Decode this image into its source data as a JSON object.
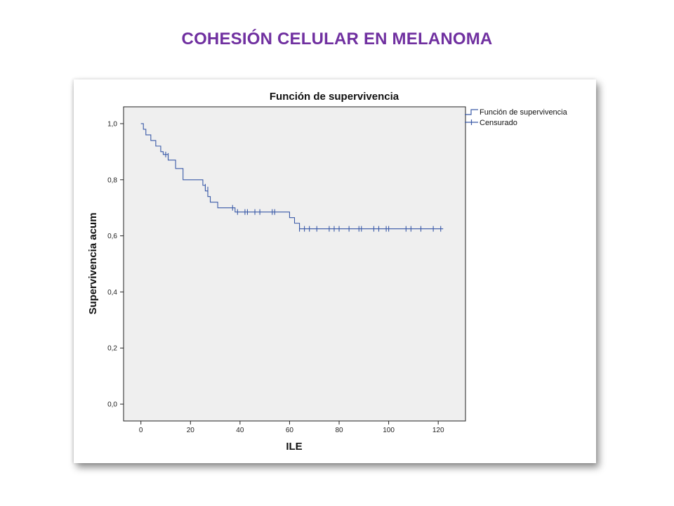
{
  "slide": {
    "title": "COHESIÓN CELULAR EN MELANOMA"
  },
  "colors": {
    "title": "#7030a0",
    "plot_background": "#efefef",
    "series": "#3a5aa8"
  },
  "chart_data": {
    "type": "line",
    "title": "Función de supervivencia",
    "xlabel": "ILE",
    "ylabel": "Supervivencia acum",
    "xlim": [
      -7,
      131
    ],
    "ylim": [
      -0.06,
      1.06
    ],
    "x_ticks": [
      0,
      20,
      40,
      60,
      80,
      100,
      120
    ],
    "y_ticks": [
      0.0,
      0.2,
      0.4,
      0.6,
      0.8,
      1.0
    ],
    "x_tick_labels": [
      "0",
      "20",
      "40",
      "60",
      "80",
      "100",
      "120"
    ],
    "y_tick_labels": [
      "0,0",
      "0,2",
      "0,4",
      "0,6",
      "0,8",
      "1,0"
    ],
    "grid": false,
    "legend_position": "outside-top-right",
    "series": [
      {
        "name": "Función de supervivencia",
        "step": [
          [
            0,
            1.0
          ],
          [
            1,
            0.98
          ],
          [
            2,
            0.96
          ],
          [
            4,
            0.94
          ],
          [
            6,
            0.92
          ],
          [
            8,
            0.9
          ],
          [
            9,
            0.89
          ],
          [
            11,
            0.87
          ],
          [
            14,
            0.84
          ],
          [
            17,
            0.8
          ],
          [
            25,
            0.78
          ],
          [
            26,
            0.76
          ],
          [
            27,
            0.74
          ],
          [
            28,
            0.72
          ],
          [
            31,
            0.7
          ],
          [
            38,
            0.685
          ],
          [
            60,
            0.665
          ],
          [
            62,
            0.645
          ],
          [
            64,
            0.625
          ],
          [
            122,
            0.625
          ]
        ]
      },
      {
        "name": "Censurado",
        "censored": [
          [
            10,
            0.89
          ],
          [
            11,
            0.885
          ],
          [
            26,
            0.775
          ],
          [
            27,
            0.765
          ],
          [
            37,
            0.7
          ],
          [
            39,
            0.685
          ],
          [
            42,
            0.685
          ],
          [
            43,
            0.685
          ],
          [
            46,
            0.685
          ],
          [
            48,
            0.685
          ],
          [
            53,
            0.685
          ],
          [
            54,
            0.685
          ],
          [
            64,
            0.625
          ],
          [
            66,
            0.625
          ],
          [
            68,
            0.625
          ],
          [
            71,
            0.625
          ],
          [
            76,
            0.625
          ],
          [
            78,
            0.625
          ],
          [
            80,
            0.625
          ],
          [
            84,
            0.625
          ],
          [
            88,
            0.625
          ],
          [
            89,
            0.625
          ],
          [
            94,
            0.625
          ],
          [
            96,
            0.625
          ],
          [
            99,
            0.625
          ],
          [
            100,
            0.625
          ],
          [
            107,
            0.625
          ],
          [
            109,
            0.625
          ],
          [
            113,
            0.625
          ],
          [
            118,
            0.625
          ],
          [
            121,
            0.625
          ]
        ]
      }
    ]
  }
}
